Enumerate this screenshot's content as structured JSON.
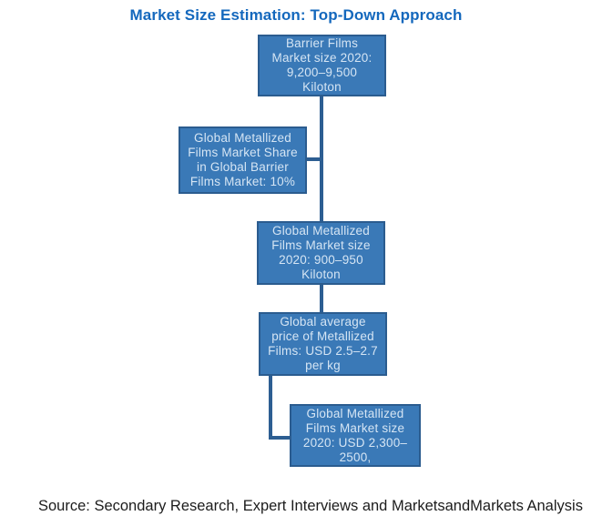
{
  "title": "Market Size Estimation: Top-Down Approach",
  "source_note": "Source: Secondary Research, Expert Interviews and MarketsandMarkets Analysis",
  "colors": {
    "title_blue": "#1468bd",
    "box_fill": "#3a79b7",
    "box_border": "#2b5c8f",
    "box_text": "#d5e5f4",
    "connector": "#2d5e92",
    "source_text": "#1c1c1c"
  },
  "diagram": {
    "boxes": [
      {
        "id": "barrier-films-market-size",
        "text": "Barrier Films Market size 2020: 9,200–9,500 Kiloton",
        "lines": [
          "Barrier Films",
          "Market size 2020:",
          "9,200–9,500",
          "Kiloton"
        ]
      },
      {
        "id": "metallized-share-in-barrier",
        "text": "Global Metallized Films Market Share in Global Barrier Films Market: 10%",
        "lines": [
          "Global Metallized",
          "Films Market Share",
          "in Global Barrier",
          "Films Market: 10%"
        ]
      },
      {
        "id": "metallized-market-size-kiloton",
        "text": "Global Metallized Films Market size 2020: 900–950 Kiloton",
        "lines": [
          "Global Metallized",
          "Films Market size",
          "2020: 900–950",
          "Kiloton"
        ]
      },
      {
        "id": "metallized-average-price",
        "text": "Global average price of Metallized Films: USD 2.5–2.7 per kg",
        "lines": [
          "Global average",
          "price of Metallized",
          "Films: USD 2.5–2.7",
          "per kg"
        ]
      },
      {
        "id": "metallized-market-size-usd",
        "text": "Global Metallized Films Market size 2020: USD 2,300–2500,",
        "lines": [
          "Global Metallized",
          "Films Market size",
          "2020: USD 2,300–",
          "2500,"
        ]
      }
    ]
  }
}
